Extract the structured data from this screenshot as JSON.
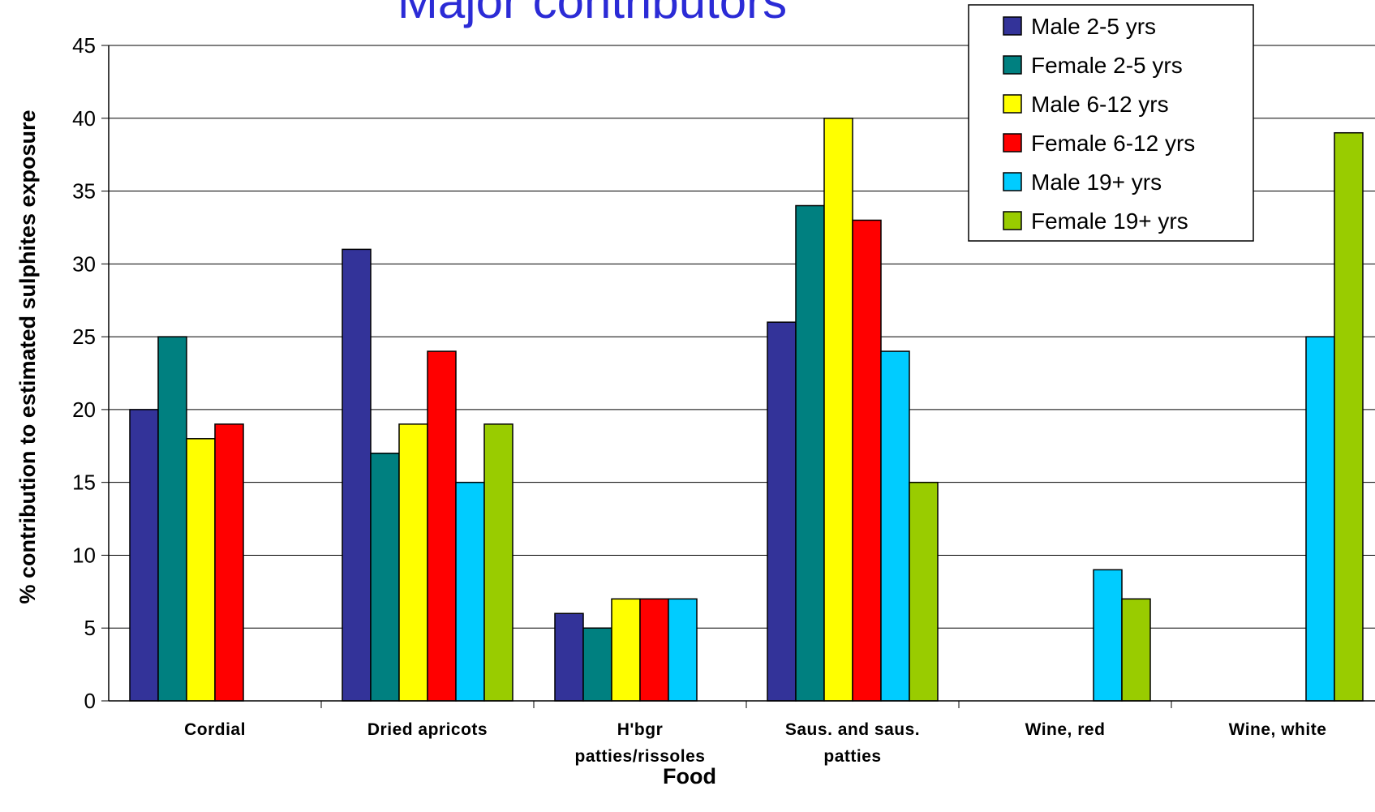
{
  "chart_data": {
    "type": "bar",
    "title": "Major contributors",
    "xlabel": "Food",
    "ylabel": "% contribution to estimated sulphites exposure",
    "ylim": [
      0,
      45
    ],
    "yticks": [
      0,
      5,
      10,
      15,
      20,
      25,
      30,
      35,
      40,
      45
    ],
    "grid": true,
    "legend_position": "top-right",
    "categories": [
      [
        "Cordial"
      ],
      [
        "Dried apricots"
      ],
      [
        "H'bgr",
        "patties/rissoles"
      ],
      [
        "Saus. and saus.",
        "patties"
      ],
      [
        "Wine, red"
      ],
      [
        "Wine, white"
      ]
    ],
    "series": [
      {
        "name": "Male 2-5 yrs",
        "color": "#333399",
        "values": [
          20,
          31,
          6,
          26,
          null,
          null
        ]
      },
      {
        "name": "Female 2-5 yrs",
        "color": "#008080",
        "values": [
          25,
          17,
          5,
          34,
          null,
          null
        ]
      },
      {
        "name": "Male 6-12 yrs",
        "color": "#ffff00",
        "values": [
          18,
          19,
          7,
          40,
          null,
          null
        ]
      },
      {
        "name": "Female 6-12 yrs",
        "color": "#ff0000",
        "values": [
          19,
          24,
          7,
          33,
          null,
          null
        ]
      },
      {
        "name": "Male 19+ yrs",
        "color": "#00ccff",
        "values": [
          null,
          15,
          7,
          24,
          9,
          25
        ]
      },
      {
        "name": "Female 19+ yrs",
        "color": "#99cc00",
        "values": [
          null,
          19,
          null,
          15,
          7,
          39
        ]
      }
    ]
  }
}
